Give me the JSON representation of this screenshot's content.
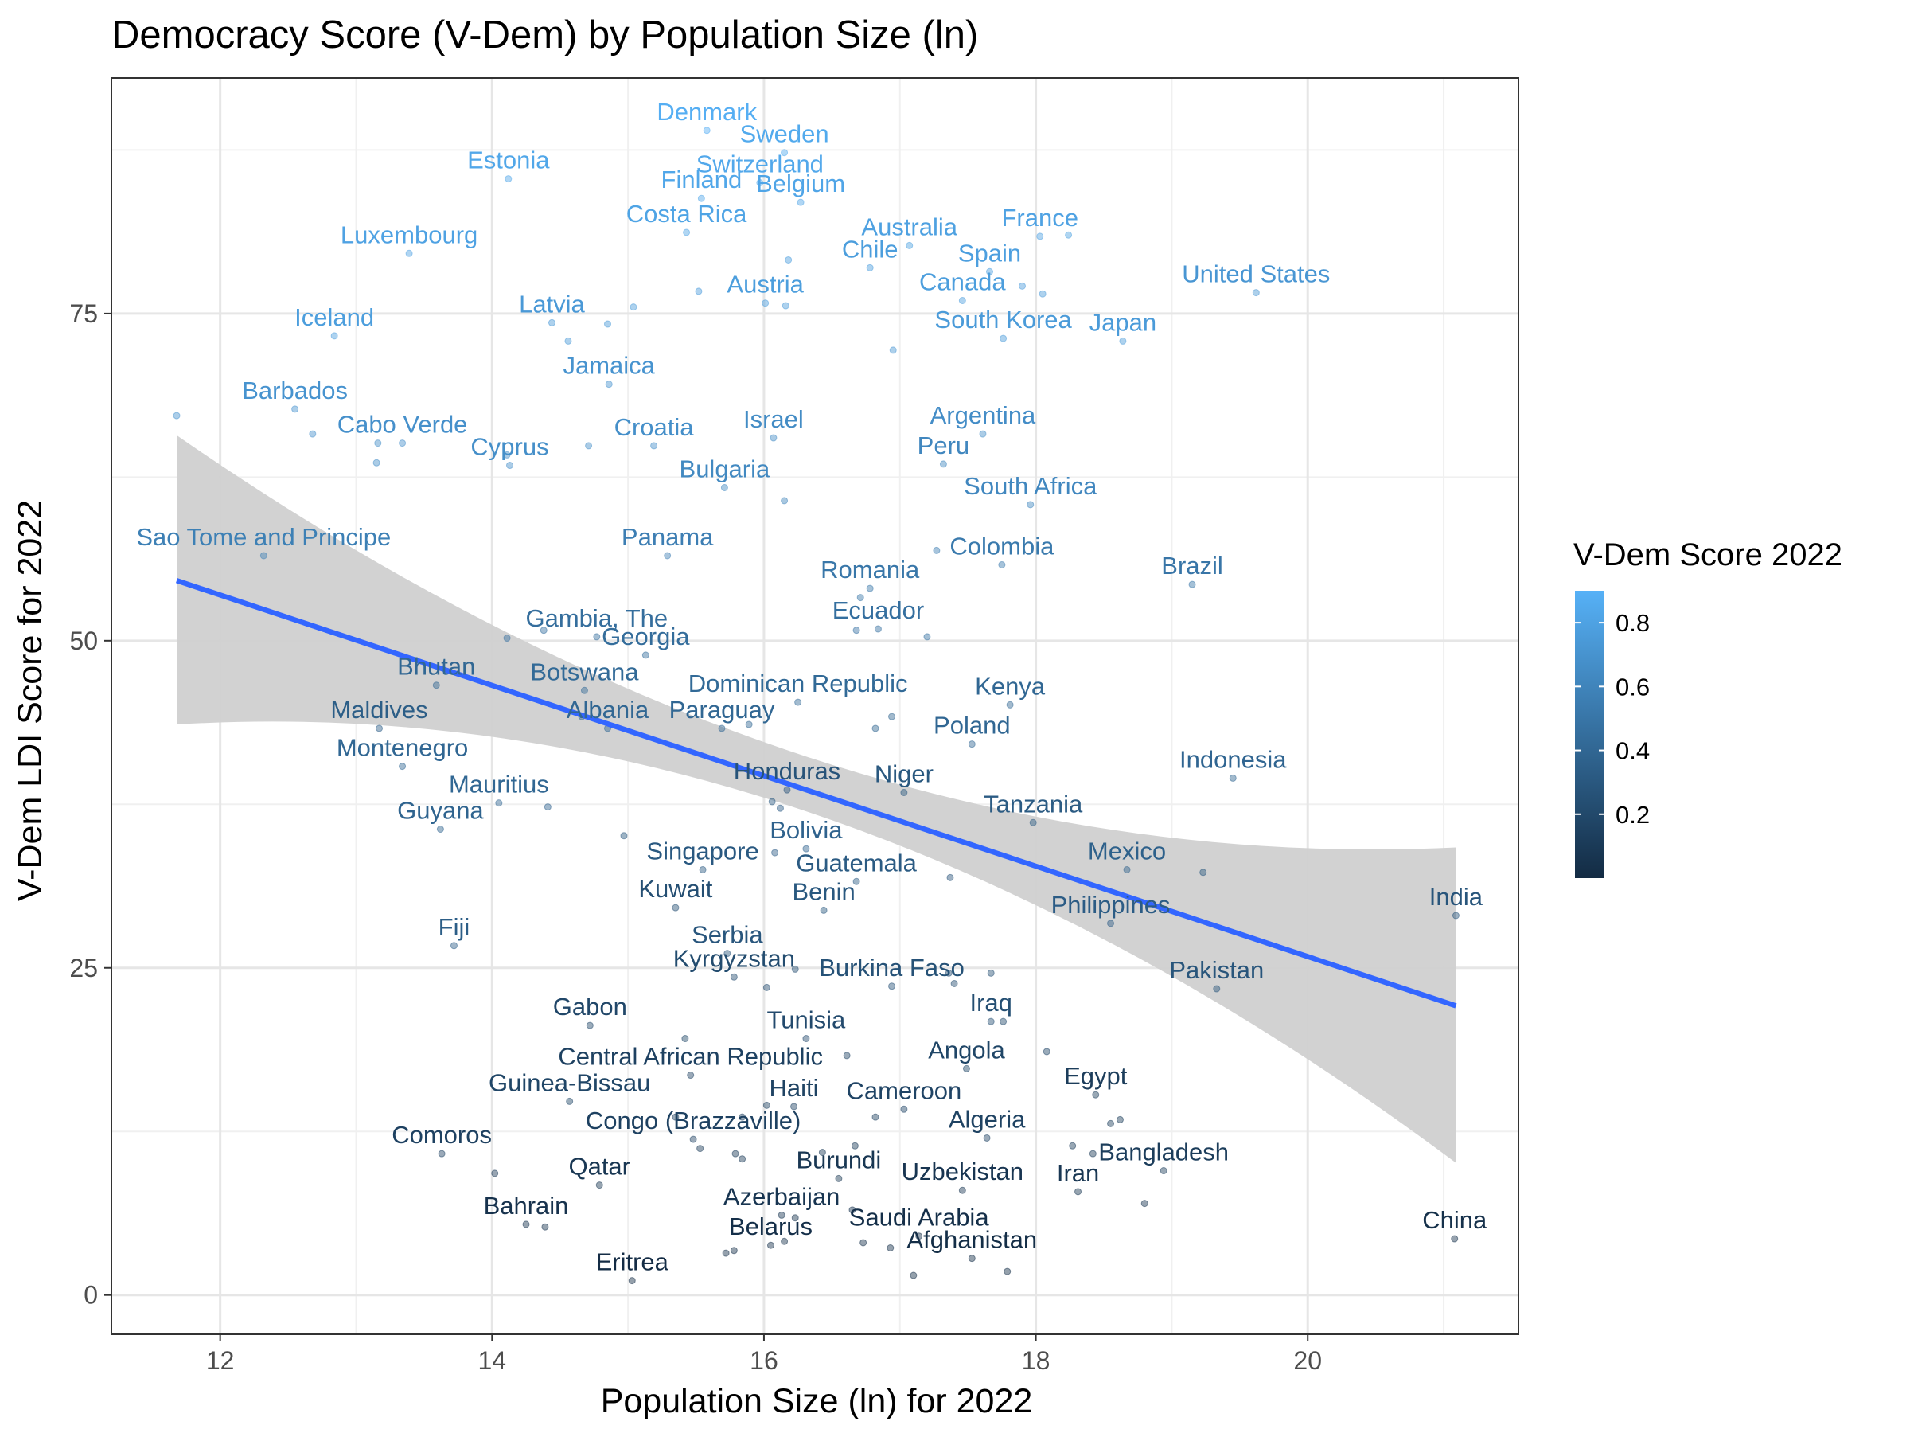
{
  "chart_data": {
    "type": "scatter",
    "title": "Democracy Score (V-Dem) by Population Size (ln)",
    "xlabel": "Population Size (ln) for 2022",
    "ylabel": "V-Dem LDI Score for 2022",
    "xlim": [
      11.2,
      21.55
    ],
    "ylim": [
      -3,
      93
    ],
    "x_ticks": [
      12,
      14,
      16,
      18,
      20
    ],
    "y_ticks": [
      0,
      25,
      50,
      75
    ],
    "grid": true,
    "legend": {
      "title": "V-Dem Score 2022",
      "placement": "right",
      "ticks": [
        0.2,
        0.4,
        0.6,
        0.8
      ],
      "range": [
        0.0,
        0.9
      ],
      "color_low": "#132B43",
      "color_high": "#56B1F7"
    },
    "trend": {
      "method": "linear fit with confidence band",
      "line_color": "#3366FF",
      "band_color": "#d0d0d0",
      "x_range": [
        11.68,
        21.09
      ],
      "fit_start": 54.6,
      "fit_end": 22.1,
      "ci_start": [
        43.6,
        65.7
      ],
      "ci_mid": [
        36.7,
        40.9
      ],
      "ci_end": [
        10.1,
        34.2
      ]
    },
    "points": [
      {
        "label": "Denmark",
        "x": 15.58,
        "y": 89.0,
        "score": 0.88
      },
      {
        "label": "Sweden",
        "x": 16.15,
        "y": 87.3,
        "score": 0.85
      },
      {
        "label": "Switzerland",
        "x": 15.97,
        "y": 85.0,
        "score": 0.84
      },
      {
        "label": "Estonia",
        "x": 14.12,
        "y": 85.3,
        "score": 0.83
      },
      {
        "label": "Finland",
        "x": 15.54,
        "y": 83.8,
        "score": 0.83
      },
      {
        "label": "Belgium",
        "x": 16.27,
        "y": 83.5,
        "score": 0.82
      },
      {
        "label": "Costa Rica",
        "x": 15.43,
        "y": 81.2,
        "score": 0.81
      },
      {
        "label": "Luxembourg",
        "x": 13.39,
        "y": 79.6,
        "score": 0.8
      },
      {
        "label": "Australia",
        "x": 17.07,
        "y": 80.2,
        "score": 0.79
      },
      {
        "label": "France",
        "x": 18.03,
        "y": 80.9,
        "score": 0.8
      },
      {
        "label": "Chile",
        "x": 16.78,
        "y": 78.5,
        "score": 0.77
      },
      {
        "label": "Spain",
        "x": 17.66,
        "y": 78.2,
        "score": 0.78
      },
      {
        "label": "Austria",
        "x": 16.01,
        "y": 75.8,
        "score": 0.77
      },
      {
        "label": "Canada",
        "x": 17.46,
        "y": 76.0,
        "score": 0.77
      },
      {
        "label": "United States",
        "x": 19.62,
        "y": 76.6,
        "score": 0.72
      },
      {
        "label": "Latvia",
        "x": 14.44,
        "y": 74.3,
        "score": 0.74
      },
      {
        "label": "Iceland",
        "x": 12.84,
        "y": 73.3,
        "score": 0.77
      },
      {
        "label": "South Korea",
        "x": 17.76,
        "y": 73.1,
        "score": 0.75
      },
      {
        "label": "Japan",
        "x": 18.64,
        "y": 72.9,
        "score": 0.75
      },
      {
        "label": "Jamaica",
        "x": 14.86,
        "y": 69.6,
        "score": 0.7
      },
      {
        "label": "Barbados",
        "x": 12.55,
        "y": 67.7,
        "score": 0.7
      },
      {
        "label": "Argentina",
        "x": 17.61,
        "y": 65.8,
        "score": 0.66
      },
      {
        "label": "Israel",
        "x": 16.07,
        "y": 65.5,
        "score": 0.65
      },
      {
        "label": "Cabo Verde",
        "x": 13.34,
        "y": 65.1,
        "score": 0.68
      },
      {
        "label": "Croatia",
        "x": 15.19,
        "y": 64.9,
        "score": 0.67
      },
      {
        "label": "Cyprus",
        "x": 14.13,
        "y": 63.4,
        "score": 0.67
      },
      {
        "label": "Peru",
        "x": 17.32,
        "y": 63.5,
        "score": 0.62
      },
      {
        "label": "Bulgaria",
        "x": 15.71,
        "y": 61.7,
        "score": 0.63
      },
      {
        "label": "South Africa",
        "x": 17.96,
        "y": 60.4,
        "score": 0.62
      },
      {
        "label": "Sao Tome and Principe",
        "x": 12.32,
        "y": 56.5,
        "score": 0.57
      },
      {
        "label": "Panama",
        "x": 15.29,
        "y": 56.5,
        "score": 0.56
      },
      {
        "label": "Colombia",
        "x": 17.75,
        "y": 55.8,
        "score": 0.53
      },
      {
        "label": "Brazil",
        "x": 19.15,
        "y": 54.3,
        "score": 0.5
      },
      {
        "label": "Romania",
        "x": 16.78,
        "y": 54.0,
        "score": 0.51
      },
      {
        "label": "Ecuador",
        "x": 16.84,
        "y": 50.9,
        "score": 0.46
      },
      {
        "label": "Gambia, The",
        "x": 14.77,
        "y": 50.3,
        "score": 0.45
      },
      {
        "label": "Georgia",
        "x": 15.13,
        "y": 48.9,
        "score": 0.44
      },
      {
        "label": "Bhutan",
        "x": 13.59,
        "y": 46.6,
        "score": 0.4
      },
      {
        "label": "Botswana",
        "x": 14.68,
        "y": 46.2,
        "score": 0.42
      },
      {
        "label": "Dominican Republic",
        "x": 16.25,
        "y": 45.3,
        "score": 0.42
      },
      {
        "label": "Kenya",
        "x": 17.81,
        "y": 45.1,
        "score": 0.4
      },
      {
        "label": "Maldives",
        "x": 13.17,
        "y": 43.3,
        "score": 0.34
      },
      {
        "label": "Albania",
        "x": 14.85,
        "y": 43.3,
        "score": 0.4
      },
      {
        "label": "Paraguay",
        "x": 15.69,
        "y": 43.3,
        "score": 0.4
      },
      {
        "label": "Poland",
        "x": 17.53,
        "y": 42.1,
        "score": 0.4
      },
      {
        "label": "Montenegro",
        "x": 13.34,
        "y": 40.4,
        "score": 0.4
      },
      {
        "label": "Indonesia",
        "x": 19.45,
        "y": 39.5,
        "score": 0.39
      },
      {
        "label": "Honduras",
        "x": 16.17,
        "y": 38.6,
        "score": 0.27
      },
      {
        "label": "Niger",
        "x": 17.03,
        "y": 38.4,
        "score": 0.3
      },
      {
        "label": "Mauritius",
        "x": 14.05,
        "y": 37.6,
        "score": 0.4
      },
      {
        "label": "Guyana",
        "x": 13.62,
        "y": 35.6,
        "score": 0.38
      },
      {
        "label": "Tanzania",
        "x": 17.98,
        "y": 36.1,
        "score": 0.32
      },
      {
        "label": "Bolivia",
        "x": 16.31,
        "y": 34.1,
        "score": 0.37
      },
      {
        "label": "Singapore",
        "x": 15.55,
        "y": 32.5,
        "score": 0.31
      },
      {
        "label": "Mexico",
        "x": 18.67,
        "y": 32.5,
        "score": 0.36
      },
      {
        "label": "Guatemala",
        "x": 16.68,
        "y": 31.6,
        "score": 0.32
      },
      {
        "label": "Kuwait",
        "x": 15.35,
        "y": 29.6,
        "score": 0.24
      },
      {
        "label": "Benin",
        "x": 16.44,
        "y": 29.4,
        "score": 0.3
      },
      {
        "label": "Philippines",
        "x": 18.55,
        "y": 28.4,
        "score": 0.33
      },
      {
        "label": "India",
        "x": 21.09,
        "y": 29.0,
        "score": 0.28
      },
      {
        "label": "Fiji",
        "x": 13.72,
        "y": 26.7,
        "score": 0.34
      },
      {
        "label": "Serbia",
        "x": 15.73,
        "y": 26.1,
        "score": 0.29
      },
      {
        "label": "Kyrgyzstan",
        "x": 15.78,
        "y": 24.3,
        "score": 0.22
      },
      {
        "label": "Burkina Faso",
        "x": 16.94,
        "y": 23.6,
        "score": 0.26
      },
      {
        "label": "Pakistan",
        "x": 19.33,
        "y": 23.4,
        "score": 0.28
      },
      {
        "label": "Gabon",
        "x": 14.72,
        "y": 20.6,
        "score": 0.19
      },
      {
        "label": "Iraq",
        "x": 17.67,
        "y": 20.9,
        "score": 0.24
      },
      {
        "label": "Tunisia",
        "x": 16.31,
        "y": 19.6,
        "score": 0.21
      },
      {
        "label": "Central African Republic",
        "x": 15.46,
        "y": 16.8,
        "score": 0.15
      },
      {
        "label": "Angola",
        "x": 17.49,
        "y": 17.3,
        "score": 0.18
      },
      {
        "label": "Guinea-Bissau",
        "x": 14.57,
        "y": 14.8,
        "score": 0.18
      },
      {
        "label": "Haiti",
        "x": 16.22,
        "y": 14.4,
        "score": 0.16
      },
      {
        "label": "Cameroon",
        "x": 17.03,
        "y": 14.2,
        "score": 0.17
      },
      {
        "label": "Egypt",
        "x": 18.44,
        "y": 15.3,
        "score": 0.12
      },
      {
        "label": "Algeria",
        "x": 17.64,
        "y": 12.0,
        "score": 0.16
      },
      {
        "label": "Congo (Brazzaville)",
        "x": 15.48,
        "y": 11.9,
        "score": 0.15
      },
      {
        "label": "Comoros",
        "x": 13.63,
        "y": 10.8,
        "score": 0.15
      },
      {
        "label": "Bangladesh",
        "x": 18.94,
        "y": 9.5,
        "score": 0.12
      },
      {
        "label": "Burundi",
        "x": 16.55,
        "y": 8.9,
        "score": 0.08
      },
      {
        "label": "Qatar",
        "x": 14.79,
        "y": 8.4,
        "score": 0.08
      },
      {
        "label": "Uzbekistan",
        "x": 17.46,
        "y": 8.0,
        "score": 0.07
      },
      {
        "label": "Iran",
        "x": 18.31,
        "y": 7.9,
        "score": 0.08
      },
      {
        "label": "Azerbaijan",
        "x": 16.13,
        "y": 6.1,
        "score": 0.07
      },
      {
        "label": "Bahrain",
        "x": 14.25,
        "y": 5.4,
        "score": 0.05
      },
      {
        "label": "Saudi Arabia",
        "x": 17.14,
        "y": 4.5,
        "score": 0.03
      },
      {
        "label": "China",
        "x": 21.08,
        "y": 4.3,
        "score": 0.04
      },
      {
        "label": "Belarus",
        "x": 16.05,
        "y": 3.8,
        "score": 0.03
      },
      {
        "label": "Afghanistan",
        "x": 17.53,
        "y": 2.8,
        "score": 0.02
      },
      {
        "label": "Eritrea",
        "x": 15.03,
        "y": 1.1,
        "score": 0.01
      }
    ],
    "unlabeled_points": [
      {
        "x": 11.68,
        "y": 67.2,
        "score": 0.7
      },
      {
        "x": 12.68,
        "y": 65.8,
        "score": 0.68
      },
      {
        "x": 13.15,
        "y": 63.6,
        "score": 0.66
      },
      {
        "x": 13.16,
        "y": 65.1,
        "score": 0.66
      },
      {
        "x": 14.56,
        "y": 72.9,
        "score": 0.74
      },
      {
        "x": 14.85,
        "y": 74.2,
        "score": 0.74
      },
      {
        "x": 15.04,
        "y": 75.5,
        "score": 0.75
      },
      {
        "x": 15.52,
        "y": 76.7,
        "score": 0.76
      },
      {
        "x": 16.18,
        "y": 79.1,
        "score": 0.77
      },
      {
        "x": 16.16,
        "y": 75.6,
        "score": 0.75
      },
      {
        "x": 16.95,
        "y": 72.2,
        "score": 0.72
      },
      {
        "x": 17.9,
        "y": 77.1,
        "score": 0.76
      },
      {
        "x": 18.05,
        "y": 76.5,
        "score": 0.75
      },
      {
        "x": 18.24,
        "y": 81.0,
        "score": 0.79
      },
      {
        "x": 14.71,
        "y": 64.9,
        "score": 0.66
      },
      {
        "x": 14.11,
        "y": 64.2,
        "score": 0.65
      },
      {
        "x": 16.15,
        "y": 60.7,
        "score": 0.6
      },
      {
        "x": 17.27,
        "y": 56.9,
        "score": 0.55
      },
      {
        "x": 16.71,
        "y": 53.3,
        "score": 0.5
      },
      {
        "x": 16.68,
        "y": 50.8,
        "score": 0.48
      },
      {
        "x": 17.2,
        "y": 50.3,
        "score": 0.47
      },
      {
        "x": 14.11,
        "y": 50.2,
        "score": 0.46
      },
      {
        "x": 14.38,
        "y": 50.8,
        "score": 0.46
      },
      {
        "x": 14.66,
        "y": 44.2,
        "score": 0.4
      },
      {
        "x": 15.89,
        "y": 43.6,
        "score": 0.4
      },
      {
        "x": 16.82,
        "y": 43.3,
        "score": 0.39
      },
      {
        "x": 16.94,
        "y": 44.2,
        "score": 0.39
      },
      {
        "x": 14.41,
        "y": 37.3,
        "score": 0.37
      },
      {
        "x": 16.06,
        "y": 37.7,
        "score": 0.31
      },
      {
        "x": 16.12,
        "y": 37.2,
        "score": 0.33
      },
      {
        "x": 16.08,
        "y": 33.8,
        "score": 0.33
      },
      {
        "x": 14.97,
        "y": 35.1,
        "score": 0.3
      },
      {
        "x": 17.37,
        "y": 31.9,
        "score": 0.27
      },
      {
        "x": 19.23,
        "y": 32.3,
        "score": 0.3
      },
      {
        "x": 16.02,
        "y": 23.5,
        "score": 0.22
      },
      {
        "x": 16.23,
        "y": 24.9,
        "score": 0.23
      },
      {
        "x": 17.36,
        "y": 24.6,
        "score": 0.22
      },
      {
        "x": 17.4,
        "y": 23.8,
        "score": 0.22
      },
      {
        "x": 17.67,
        "y": 24.6,
        "score": 0.24
      },
      {
        "x": 17.76,
        "y": 20.9,
        "score": 0.2
      },
      {
        "x": 15.42,
        "y": 19.6,
        "score": 0.18
      },
      {
        "x": 16.61,
        "y": 18.3,
        "score": 0.16
      },
      {
        "x": 18.08,
        "y": 18.6,
        "score": 0.17
      },
      {
        "x": 16.02,
        "y": 14.5,
        "score": 0.14
      },
      {
        "x": 16.82,
        "y": 13.6,
        "score": 0.14
      },
      {
        "x": 15.84,
        "y": 13.6,
        "score": 0.13
      },
      {
        "x": 15.35,
        "y": 13.6,
        "score": 0.13
      },
      {
        "x": 18.55,
        "y": 13.1,
        "score": 0.12
      },
      {
        "x": 18.62,
        "y": 13.4,
        "score": 0.12
      },
      {
        "x": 18.27,
        "y": 11.4,
        "score": 0.11
      },
      {
        "x": 18.42,
        "y": 10.8,
        "score": 0.1
      },
      {
        "x": 16.67,
        "y": 11.4,
        "score": 0.11
      },
      {
        "x": 16.43,
        "y": 10.9,
        "score": 0.1
      },
      {
        "x": 15.53,
        "y": 11.2,
        "score": 0.1
      },
      {
        "x": 15.79,
        "y": 10.8,
        "score": 0.1
      },
      {
        "x": 15.84,
        "y": 10.4,
        "score": 0.1
      },
      {
        "x": 14.02,
        "y": 9.3,
        "score": 0.09
      },
      {
        "x": 18.8,
        "y": 7.0,
        "score": 0.06
      },
      {
        "x": 16.65,
        "y": 6.5,
        "score": 0.06
      },
      {
        "x": 16.23,
        "y": 5.9,
        "score": 0.05
      },
      {
        "x": 14.39,
        "y": 5.2,
        "score": 0.05
      },
      {
        "x": 16.73,
        "y": 4.0,
        "score": 0.04
      },
      {
        "x": 16.15,
        "y": 4.1,
        "score": 0.04
      },
      {
        "x": 15.78,
        "y": 3.4,
        "score": 0.03
      },
      {
        "x": 15.72,
        "y": 3.2,
        "score": 0.03
      },
      {
        "x": 16.93,
        "y": 3.6,
        "score": 0.03
      },
      {
        "x": 17.1,
        "y": 1.5,
        "score": 0.02
      },
      {
        "x": 17.79,
        "y": 1.8,
        "score": 0.02
      }
    ]
  }
}
